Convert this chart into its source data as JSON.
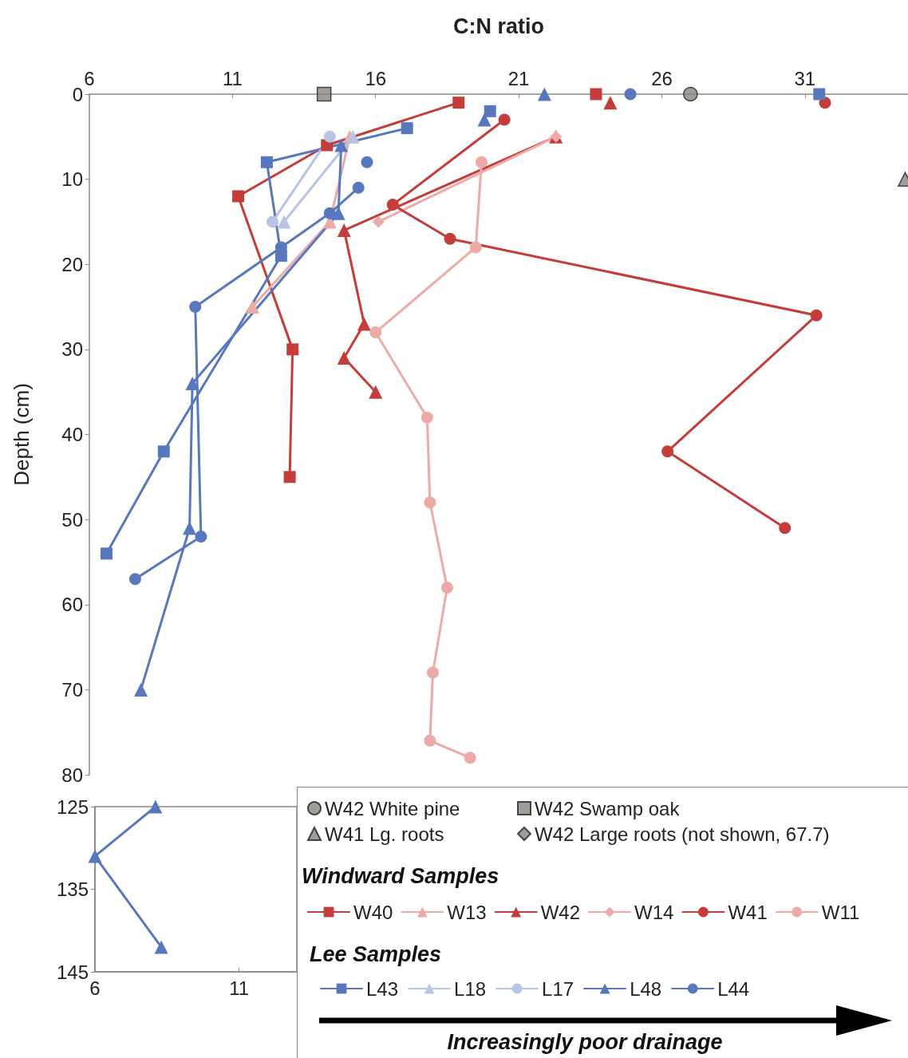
{
  "chart_data": [
    {
      "type": "line",
      "xlabel": "C:N ratio",
      "ylabel": "Depth (cm)",
      "xlim": [
        6,
        34.6
      ],
      "xticks": [
        6,
        11,
        16,
        21,
        26,
        31
      ],
      "ylim": [
        80,
        0
      ],
      "yticks": [
        0,
        10,
        20,
        30,
        40,
        50,
        60,
        70,
        80
      ],
      "legend": "bottom right",
      "annotations": [
        "Windward Samples",
        "Lee Samples",
        "Increasingly poor drainage"
      ],
      "series": [
        {
          "name": "W42 White pine",
          "type": "scatter",
          "marker": "circle",
          "color": "#8a8580",
          "x": [
            27.0
          ],
          "values": [
            0
          ]
        },
        {
          "name": "W42 Swamp oak",
          "type": "scatter",
          "marker": "square",
          "color": "#8a8580",
          "x": [
            14.2
          ],
          "values": [
            0
          ]
        },
        {
          "name": "W41 Lg. roots",
          "type": "scatter",
          "marker": "triangle",
          "color": "#8a8580",
          "x": [
            34.5
          ],
          "values": [
            10
          ]
        },
        {
          "name": "W42 Large roots (not shown, 67.7)",
          "type": "scatter",
          "marker": "diamond",
          "color": "#8a8580"
        },
        {
          "name": "W40",
          "marker": "square",
          "color": "#c43d3a",
          "x": [
            23.7,
            null,
            18.9,
            14.3,
            11.2,
            13.1,
            13.0
          ],
          "values": [
            0,
            null,
            1,
            6,
            12,
            30,
            45
          ]
        },
        {
          "name": "W13",
          "marker": "triangle",
          "color": "#eeaaa7",
          "x": [
            15.1,
            14.4,
            11.7
          ],
          "values": [
            5,
            15,
            25
          ]
        },
        {
          "name": "W42",
          "marker": "triangle",
          "color": "#c43d3a",
          "x": [
            24.2,
            null,
            22.3,
            14.9,
            15.6,
            14.9,
            16.0
          ],
          "values": [
            1,
            null,
            5,
            16,
            27,
            31,
            35
          ]
        },
        {
          "name": "W14",
          "marker": "diamond",
          "color": "#eeaaa7",
          "x": [
            22.3,
            16.1
          ],
          "values": [
            5,
            15
          ]
        },
        {
          "name": "W41",
          "marker": "circle",
          "color": "#c43d3a",
          "x": [
            31.7,
            null,
            20.5,
            16.6,
            18.6,
            31.4,
            26.2,
            30.3
          ],
          "values": [
            1,
            null,
            3,
            13,
            17,
            26,
            42,
            51
          ]
        },
        {
          "name": "W11",
          "marker": "circle",
          "color": "#eeaaa7",
          "x": [
            19.7,
            19.5,
            16.0,
            17.8,
            17.9,
            18.5,
            18.0,
            17.9,
            19.3
          ],
          "values": [
            8,
            18,
            28,
            38,
            48,
            58,
            68,
            76,
            78
          ]
        },
        {
          "name": "L43",
          "marker": "square",
          "color": "#5878bd",
          "x": [
            31.5,
            null,
            20.0,
            null,
            17.1,
            12.2,
            12.7,
            8.6,
            6.6
          ],
          "values": [
            0,
            null,
            2,
            null,
            4,
            8,
            19,
            42,
            54
          ]
        },
        {
          "name": "L18",
          "marker": "triangle",
          "color": "#b7c4e4",
          "x": [
            15.2,
            12.8
          ],
          "values": [
            5,
            15
          ]
        },
        {
          "name": "L17",
          "marker": "circle",
          "color": "#b7c4e4",
          "x": [
            14.4,
            12.4
          ],
          "values": [
            5,
            15
          ]
        },
        {
          "name": "L48",
          "marker": "triangle",
          "color": "#5878bd",
          "x": [
            21.9,
            null,
            19.8,
            null,
            14.8,
            14.7,
            9.6,
            9.5,
            7.8
          ],
          "values": [
            0,
            null,
            3,
            null,
            6,
            14,
            34,
            51,
            70
          ]
        },
        {
          "name": "L44",
          "marker": "circle",
          "color": "#5878bd",
          "x": [
            24.9,
            null,
            15.7,
            null,
            15.4,
            14.4,
            12.7,
            9.7,
            9.9,
            7.6
          ],
          "values": [
            0,
            null,
            8,
            null,
            11,
            14,
            18,
            25,
            52,
            57
          ]
        }
      ]
    },
    {
      "type": "line",
      "xlim": [
        6,
        13
      ],
      "xticks": [
        6,
        11
      ],
      "ylim": [
        145,
        125
      ],
      "yticks": [
        125,
        135,
        145
      ],
      "series": [
        {
          "marker": "triangle",
          "color": "#5878bd",
          "x": [
            8.1,
            6.0,
            8.3
          ],
          "values": [
            125,
            131,
            142
          ]
        }
      ]
    }
  ]
}
